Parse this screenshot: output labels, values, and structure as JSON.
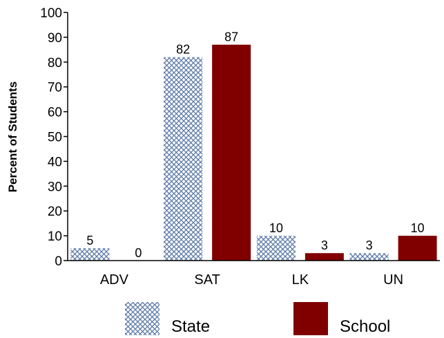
{
  "chart_data": {
    "type": "bar",
    "title": "",
    "xlabel": "",
    "ylabel": "Percent of Students",
    "ylim": [
      0,
      100
    ],
    "yticks": [
      0,
      10,
      20,
      30,
      40,
      50,
      60,
      70,
      80,
      90,
      100
    ],
    "categories": [
      "ADV",
      "SAT",
      "LK",
      "UN"
    ],
    "series": [
      {
        "name": "State",
        "values": [
          5,
          82,
          10,
          3
        ],
        "color": "#b3c3dc",
        "pattern": "crosshatch",
        "pattern_color": "#5a78a6"
      },
      {
        "name": "School",
        "values": [
          0,
          87,
          3,
          10
        ],
        "color": "#800000"
      }
    ],
    "data_labels": true,
    "grid": false,
    "legend": "bottom"
  }
}
